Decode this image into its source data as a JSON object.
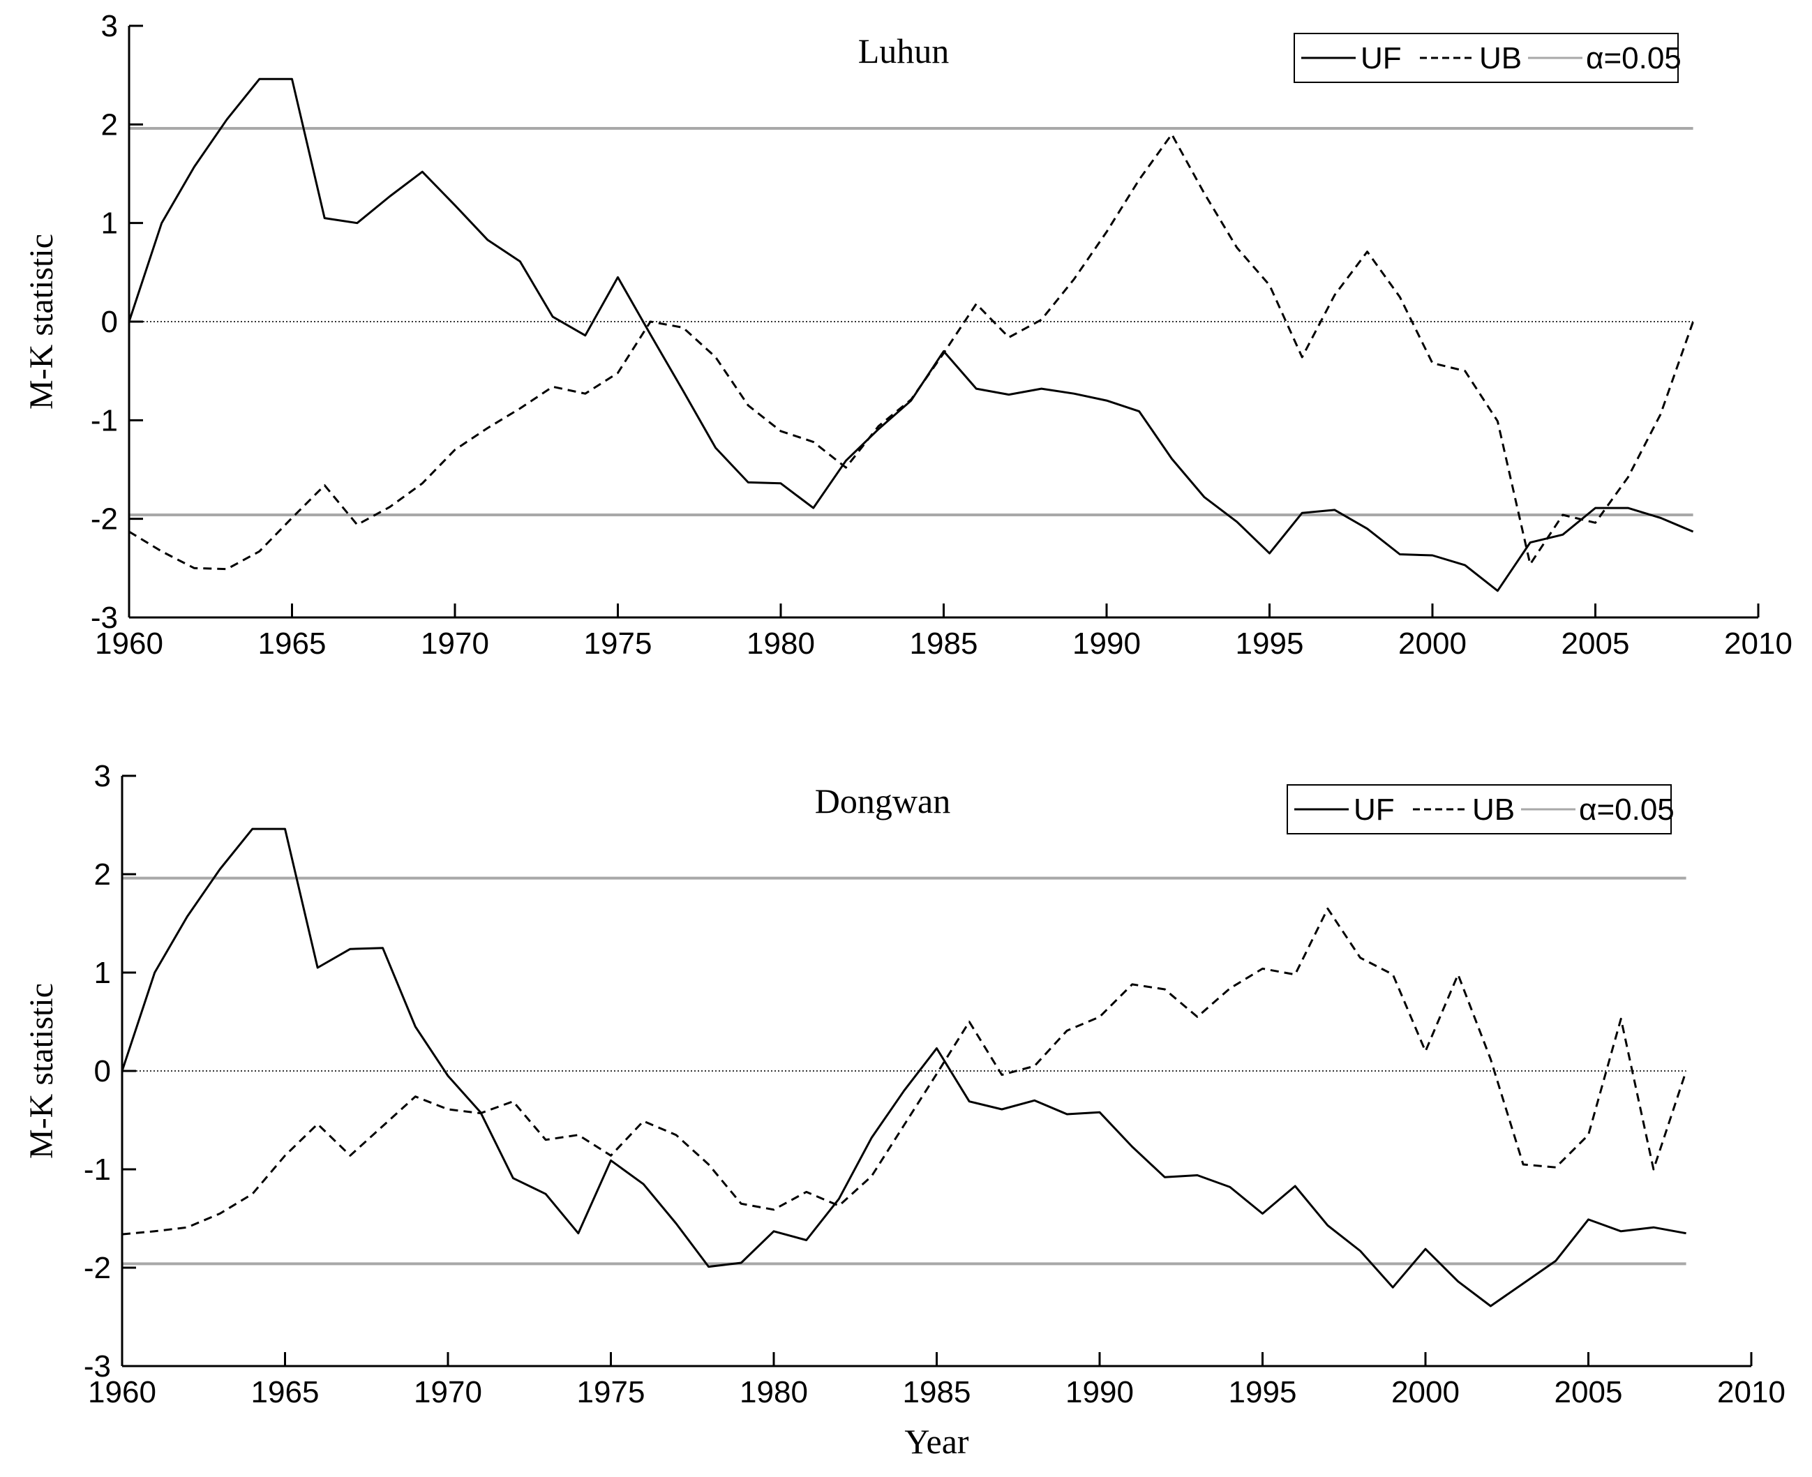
{
  "chart_data": [
    {
      "type": "line",
      "title": "Luhun",
      "xlabel": "",
      "ylabel": "M-K statistic",
      "xlim": [
        1960,
        2010
      ],
      "ylim": [
        -3,
        3
      ],
      "xticks": [
        1960,
        1965,
        1970,
        1975,
        1980,
        1985,
        1990,
        1995,
        2000,
        2005,
        2010
      ],
      "yticks": [
        3,
        2,
        1,
        0,
        -1,
        -2,
        -3
      ],
      "significance_level": 1.96,
      "legend": {
        "position": "top-right",
        "entries": [
          "UF",
          "UB",
          "α=0.05"
        ]
      },
      "x": [
        1960,
        1961,
        1962,
        1963,
        1964,
        1965,
        1966,
        1967,
        1968,
        1969,
        1970,
        1971,
        1972,
        1973,
        1974,
        1975,
        1976,
        1977,
        1978,
        1979,
        1980,
        1981,
        1982,
        1983,
        1984,
        1985,
        1986,
        1987,
        1988,
        1989,
        1990,
        1991,
        1992,
        1993,
        1994,
        1995,
        1996,
        1997,
        1998,
        1999,
        2000,
        2001,
        2002,
        2003,
        2004,
        2005,
        2006,
        2007,
        2008
      ],
      "series": [
        {
          "name": "UF",
          "style": "solid",
          "values": [
            0.0,
            1.0,
            1.57,
            2.05,
            2.46,
            2.46,
            1.05,
            1.0,
            1.27,
            1.52,
            1.18,
            0.83,
            0.61,
            0.05,
            -0.14,
            0.45,
            -0.13,
            -0.7,
            -1.28,
            -1.63,
            -1.64,
            -1.89,
            -1.41,
            -1.09,
            -0.8,
            -0.3,
            -0.68,
            -0.74,
            -0.68,
            -0.73,
            -0.8,
            -0.91,
            -1.39,
            -1.78,
            -2.03,
            -2.35,
            -1.94,
            -1.91,
            -2.1,
            -2.36,
            -2.37,
            -2.47,
            -2.73,
            -2.24,
            -2.16,
            -1.89,
            -1.89,
            -1.99,
            -2.13
          ]
        },
        {
          "name": "UB",
          "style": "dashed",
          "values": [
            -2.13,
            -2.33,
            -2.5,
            -2.51,
            -2.33,
            -1.99,
            -1.66,
            -2.06,
            -1.88,
            -1.64,
            -1.3,
            -1.08,
            -0.88,
            -0.66,
            -0.73,
            -0.52,
            0.0,
            -0.06,
            -0.36,
            -0.85,
            -1.11,
            -1.22,
            -1.48,
            -1.06,
            -0.79,
            -0.32,
            0.18,
            -0.16,
            0.02,
            0.43,
            0.91,
            1.44,
            1.9,
            1.3,
            0.75,
            0.37,
            -0.36,
            0.27,
            0.71,
            0.25,
            -0.42,
            -0.5,
            -1.01,
            -2.46,
            -1.96,
            -2.04,
            -1.58,
            -0.94,
            0.0
          ]
        }
      ]
    },
    {
      "type": "line",
      "title": "Dongwan",
      "xlabel": "Year",
      "ylabel": "M-K statistic",
      "xlim": [
        1960,
        2010
      ],
      "ylim": [
        -3,
        3
      ],
      "xticks": [
        1960,
        1965,
        1970,
        1975,
        1980,
        1985,
        1990,
        1995,
        2000,
        2005,
        2010
      ],
      "yticks": [
        3,
        2,
        1,
        0,
        -1,
        -2,
        -3
      ],
      "significance_level": 1.96,
      "legend": {
        "position": "top-right",
        "entries": [
          "UF",
          "UB",
          "α=0.05"
        ]
      },
      "x": [
        1960,
        1961,
        1962,
        1963,
        1964,
        1965,
        1966,
        1967,
        1968,
        1969,
        1970,
        1971,
        1972,
        1973,
        1974,
        1975,
        1976,
        1977,
        1978,
        1979,
        1980,
        1981,
        1982,
        1983,
        1984,
        1985,
        1986,
        1987,
        1988,
        1989,
        1990,
        1991,
        1992,
        1993,
        1994,
        1995,
        1996,
        1997,
        1998,
        1999,
        2000,
        2001,
        2002,
        2003,
        2004,
        2005,
        2006,
        2007,
        2008
      ],
      "series": [
        {
          "name": "UF",
          "style": "solid",
          "values": [
            0.0,
            1.0,
            1.57,
            2.05,
            2.46,
            2.46,
            1.05,
            1.24,
            1.25,
            0.45,
            -0.05,
            -0.42,
            -1.09,
            -1.25,
            -1.65,
            -0.91,
            -1.15,
            -1.55,
            -1.99,
            -1.95,
            -1.63,
            -1.72,
            -1.3,
            -0.68,
            -0.2,
            0.23,
            -0.31,
            -0.39,
            -0.3,
            -0.44,
            -0.42,
            -0.77,
            -1.08,
            -1.06,
            -1.18,
            -1.45,
            -1.17,
            -1.57,
            -1.83,
            -2.2,
            -1.81,
            -2.14,
            -2.39,
            -2.16,
            -1.93,
            -1.51,
            -1.63,
            -1.59,
            -1.65
          ]
        },
        {
          "name": "UB",
          "style": "dashed",
          "values": [
            -1.66,
            -1.63,
            -1.59,
            -1.45,
            -1.25,
            -0.86,
            -0.54,
            -0.86,
            -0.56,
            -0.26,
            -0.39,
            -0.43,
            -0.31,
            -0.7,
            -0.65,
            -0.86,
            -0.51,
            -0.65,
            -0.95,
            -1.35,
            -1.41,
            -1.23,
            -1.37,
            -1.07,
            -0.55,
            -0.03,
            0.5,
            -0.04,
            0.05,
            0.41,
            0.55,
            0.88,
            0.83,
            0.55,
            0.84,
            1.04,
            0.98,
            1.65,
            1.15,
            0.98,
            0.2,
            0.98,
            0.12,
            -0.95,
            -0.98,
            -0.65,
            0.53,
            -1.0,
            0.0
          ]
        }
      ]
    }
  ]
}
